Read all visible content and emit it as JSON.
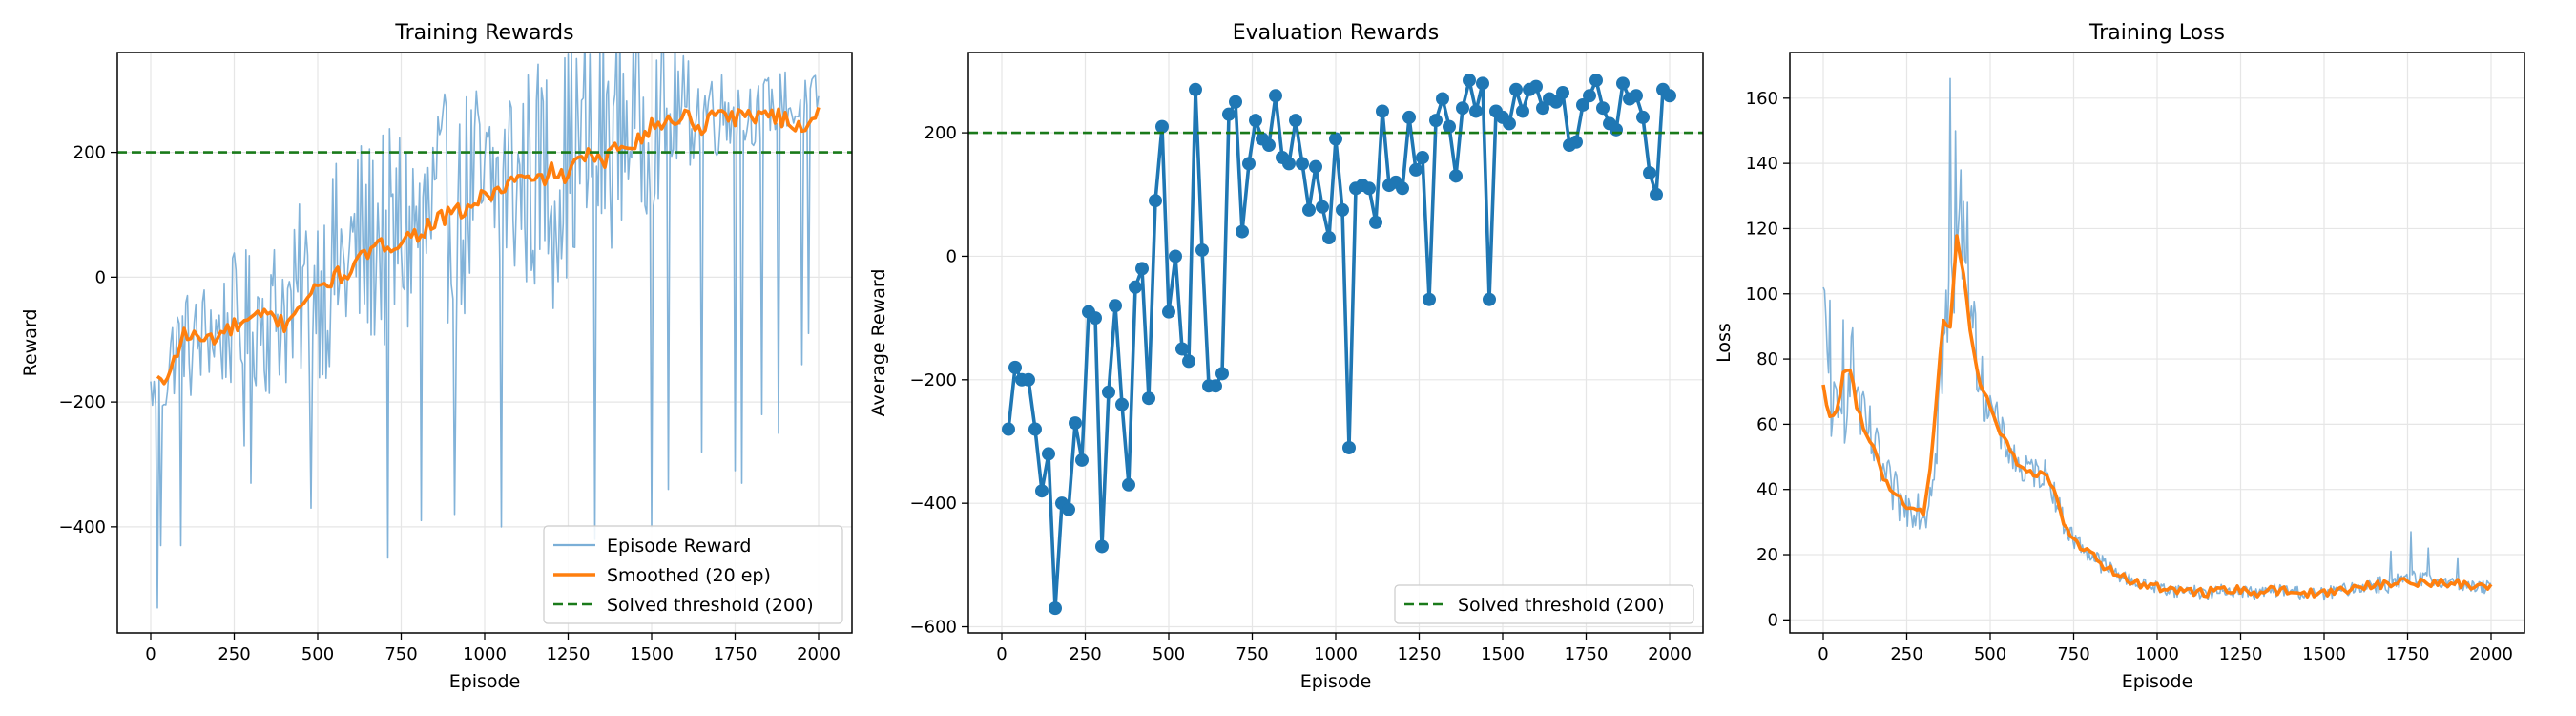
{
  "chart_data": [
    {
      "type": "line",
      "title": "Training Rewards",
      "xlabel": "Episode",
      "ylabel": "Reward",
      "xlim": [
        -100,
        2100
      ],
      "ylim": [
        -570,
        360
      ],
      "xticks": [
        0,
        250,
        500,
        750,
        1000,
        1250,
        1500,
        1750,
        2000
      ],
      "yticks": [
        -400,
        -200,
        0,
        200
      ],
      "grid": true,
      "legend_position": "lower-right",
      "threshold": {
        "value": 200,
        "label": "Solved threshold (200)",
        "color": "#1a7a1a"
      },
      "series": [
        {
          "name": "Episode Reward",
          "color": "#7bafd7",
          "episodes": [
            0,
            25,
            50,
            75,
            100,
            125,
            150,
            175,
            200,
            225,
            250,
            275,
            300,
            325,
            350,
            375,
            400,
            425,
            450,
            475,
            500,
            525,
            550,
            575,
            600,
            625,
            650,
            675,
            700,
            725,
            750,
            775,
            800,
            825,
            850,
            875,
            900,
            925,
            950,
            975,
            1000,
            1025,
            1050,
            1075,
            1100,
            1125,
            1150,
            1175,
            1200,
            1225,
            1250,
            1275,
            1300,
            1325,
            1350,
            1375,
            1400,
            1425,
            1450,
            1475,
            1500,
            1525,
            1550,
            1575,
            1600,
            1625,
            1650,
            1675,
            1700,
            1725,
            1750,
            1775,
            1800,
            1825,
            1850,
            1875,
            1900,
            1925,
            1950,
            1975,
            2000
          ],
          "values": [
            -180,
            -200,
            -150,
            -110,
            -90,
            -120,
            -100,
            -80,
            -95,
            -85,
            -70,
            -60,
            -80,
            -50,
            -75,
            -55,
            -40,
            -70,
            -20,
            -30,
            0,
            -10,
            20,
            10,
            30,
            50,
            40,
            70,
            60,
            40,
            80,
            60,
            90,
            70,
            110,
            100,
            120,
            80,
            130,
            140,
            110,
            150,
            130,
            170,
            140,
            160,
            150,
            190,
            130,
            170,
            190,
            200,
            220,
            180,
            210,
            230,
            240,
            250,
            270,
            230,
            250,
            260,
            240,
            280,
            250,
            270,
            260,
            280,
            260,
            270,
            280,
            250,
            270,
            260,
            280,
            270,
            290,
            260,
            270,
            280,
            290
          ],
          "spread": [
            30,
            60,
            70,
            80,
            80,
            90,
            90,
            90,
            100,
            100,
            110,
            110,
            120,
            120,
            120,
            130,
            140,
            140,
            150,
            150,
            160,
            160,
            170,
            170,
            170,
            180,
            180,
            180,
            190,
            190,
            190,
            190,
            190,
            190,
            190,
            190,
            190,
            190,
            190,
            190,
            190,
            190,
            190,
            190,
            190,
            190,
            190,
            190,
            190,
            190,
            190,
            190,
            190,
            190,
            190,
            190,
            170,
            160,
            150,
            150,
            140,
            130,
            120,
            110,
            100,
            90,
            80,
            80,
            70,
            70,
            60,
            60,
            60,
            50,
            50,
            50,
            50,
            50,
            50,
            40,
            40
          ],
          "extremes": [
            [
              20,
              -530
            ],
            [
              30,
              -430
            ],
            [
              90,
              -430
            ],
            [
              280,
              -270
            ],
            [
              300,
              -330
            ],
            [
              480,
              -370
            ],
            [
              710,
              -450
            ],
            [
              810,
              -390
            ],
            [
              910,
              -380
            ],
            [
              1050,
              -400
            ],
            [
              1330,
              -420
            ],
            [
              1500,
              -400
            ],
            [
              1550,
              -340
            ],
            [
              1650,
              -280
            ],
            [
              1750,
              -310
            ],
            [
              1770,
              -330
            ],
            [
              1830,
              -220
            ],
            [
              1880,
              -250
            ],
            [
              1950,
              -140
            ],
            [
              1970,
              -90
            ]
          ]
        },
        {
          "name": "Smoothed (20 ep)",
          "color": "#ff7f0e",
          "episodes": [
            20,
            40,
            60,
            80,
            100,
            150,
            200,
            250,
            300,
            350,
            400,
            450,
            500,
            550,
            600,
            650,
            700,
            750,
            800,
            850,
            900,
            950,
            1000,
            1050,
            1100,
            1150,
            1200,
            1250,
            1300,
            1350,
            1400,
            1450,
            1500,
            1550,
            1600,
            1650,
            1700,
            1750,
            1800,
            1850,
            1900,
            1950,
            2000
          ],
          "values": [
            -160,
            -180,
            -140,
            -120,
            -90,
            -100,
            -95,
            -80,
            -70,
            -60,
            -75,
            -40,
            -20,
            0,
            10,
            40,
            50,
            60,
            70,
            90,
            100,
            110,
            130,
            140,
            160,
            150,
            170,
            160,
            200,
            180,
            210,
            220,
            240,
            250,
            260,
            240,
            270,
            255,
            260,
            265,
            250,
            240,
            270
          ]
        }
      ]
    },
    {
      "type": "line",
      "title": "Evaluation Rewards",
      "xlabel": "Episode",
      "ylabel": "Average Reward",
      "xlim": [
        -100,
        2100
      ],
      "ylim": [
        -610,
        330
      ],
      "xticks": [
        0,
        250,
        500,
        750,
        1000,
        1250,
        1500,
        1750,
        2000
      ],
      "yticks": [
        -600,
        -400,
        -200,
        0,
        200
      ],
      "grid": true,
      "legend_position": "lower-right",
      "threshold": {
        "value": 200,
        "label": "Solved threshold (200)",
        "color": "#1a7a1a"
      },
      "series": [
        {
          "name": "",
          "color": "#1f77b4",
          "x": [
            20,
            40,
            60,
            80,
            100,
            120,
            140,
            160,
            180,
            200,
            220,
            240,
            260,
            280,
            300,
            320,
            340,
            360,
            380,
            400,
            420,
            440,
            460,
            480,
            500,
            520,
            540,
            560,
            580,
            600,
            620,
            640,
            660,
            680,
            700,
            720,
            740,
            760,
            780,
            800,
            820,
            840,
            860,
            880,
            900,
            920,
            940,
            960,
            980,
            1000,
            1020,
            1040,
            1060,
            1080,
            1100,
            1120,
            1140,
            1160,
            1180,
            1200,
            1220,
            1240,
            1260,
            1280,
            1300,
            1320,
            1340,
            1360,
            1380,
            1400,
            1420,
            1440,
            1460,
            1480,
            1500,
            1520,
            1540,
            1560,
            1580,
            1600,
            1620,
            1640,
            1660,
            1680,
            1700,
            1720,
            1740,
            1760,
            1780,
            1800,
            1820,
            1840,
            1860,
            1880,
            1900,
            1920,
            1940,
            1960,
            1980,
            2000
          ],
          "values": [
            -280,
            -180,
            -200,
            -200,
            -280,
            -380,
            -320,
            -570,
            -400,
            -410,
            -270,
            -330,
            -90,
            -100,
            -470,
            -220,
            -80,
            -240,
            -370,
            -50,
            -20,
            -230,
            90,
            210,
            -90,
            0,
            -150,
            -170,
            270,
            10,
            -210,
            -210,
            -190,
            230,
            250,
            40,
            150,
            220,
            190,
            180,
            260,
            160,
            150,
            220,
            150,
            75,
            145,
            80,
            30,
            190,
            75,
            -310,
            110,
            115,
            110,
            55,
            235,
            115,
            120,
            110,
            225,
            140,
            160,
            -70,
            220,
            255,
            210,
            130,
            240,
            285,
            235,
            280,
            -70,
            235,
            225,
            215,
            270,
            235,
            270,
            275,
            240,
            255,
            250,
            265,
            180,
            185,
            245,
            260,
            285,
            240,
            215,
            205,
            280,
            255,
            260,
            225,
            135,
            100,
            270,
            260
          ]
        }
      ]
    },
    {
      "type": "line",
      "title": "Training Loss",
      "xlabel": "Episode",
      "ylabel": "Loss",
      "xlim": [
        -100,
        2100
      ],
      "ylim": [
        -4,
        174
      ],
      "xticks": [
        0,
        250,
        500,
        750,
        1000,
        1250,
        1500,
        1750,
        2000
      ],
      "yticks": [
        0,
        20,
        40,
        60,
        80,
        100,
        120,
        140,
        160
      ],
      "grid": true,
      "series": [
        {
          "name": "",
          "color": "#7bafd7",
          "episodes": [
            0,
            20,
            40,
            60,
            80,
            100,
            120,
            140,
            160,
            180,
            200,
            220,
            240,
            260,
            280,
            300,
            320,
            340,
            360,
            380,
            400,
            420,
            440,
            460,
            480,
            500,
            520,
            540,
            560,
            580,
            600,
            620,
            640,
            660,
            680,
            700,
            720,
            740,
            760,
            780,
            800,
            850,
            900,
            950,
            1000,
            1050,
            1100,
            1150,
            1200,
            1250,
            1300,
            1350,
            1400,
            1450,
            1500,
            1550,
            1600,
            1650,
            1700,
            1750,
            1800,
            1850,
            1900,
            1950,
            2000
          ],
          "values": [
            95,
            70,
            58,
            62,
            82,
            70,
            60,
            56,
            50,
            45,
            40,
            38,
            34,
            35,
            36,
            32,
            40,
            60,
            85,
            95,
            110,
            120,
            100,
            80,
            70,
            65,
            60,
            55,
            52,
            48,
            45,
            46,
            45,
            45,
            43,
            36,
            30,
            26,
            24,
            22,
            20,
            16,
            13,
            11,
            10,
            9,
            9,
            8,
            9,
            9,
            8,
            9,
            9,
            8,
            8,
            9,
            10,
            11,
            11,
            12,
            12,
            12,
            11,
            10,
            10
          ],
          "spread": [
            12,
            14,
            14,
            14,
            14,
            12,
            10,
            10,
            9,
            8,
            8,
            7,
            7,
            7,
            7,
            7,
            10,
            14,
            16,
            20,
            20,
            16,
            12,
            10,
            9,
            8,
            7,
            6,
            6,
            6,
            5,
            5,
            5,
            5,
            5,
            4,
            4,
            4,
            3,
            3,
            3,
            3,
            2,
            2,
            2,
            2,
            2,
            2,
            2,
            2,
            2,
            2,
            2,
            2,
            2,
            2,
            2,
            3,
            3,
            3,
            3,
            2,
            2,
            2,
            2
          ],
          "extremes": [
            [
              5,
              101
            ],
            [
              18,
              98
            ],
            [
              60,
              92
            ],
            [
              380,
              166
            ],
            [
              395,
              150
            ],
            [
              410,
              138
            ],
            [
              430,
              128
            ],
            [
              1700,
              21
            ],
            [
              1760,
              27
            ],
            [
              1810,
              22
            ],
            [
              1900,
              19
            ]
          ]
        },
        {
          "name": "",
          "color": "#ff7f0e",
          "episodes": [
            0,
            20,
            40,
            60,
            80,
            100,
            120,
            140,
            160,
            180,
            200,
            220,
            240,
            260,
            280,
            300,
            320,
            340,
            360,
            380,
            400,
            420,
            440,
            460,
            480,
            500,
            520,
            540,
            560,
            580,
            600,
            620,
            640,
            660,
            680,
            700,
            720,
            740,
            760,
            780,
            800,
            850,
            900,
            950,
            1000,
            1050,
            1100,
            1150,
            1200,
            1250,
            1300,
            1350,
            1400,
            1450,
            1500,
            1550,
            1600,
            1650,
            1700,
            1750,
            1800,
            1850,
            1900,
            1950,
            2000
          ],
          "values": [
            72,
            62,
            64,
            76,
            78,
            66,
            60,
            55,
            50,
            44,
            40,
            38,
            36,
            35,
            33,
            33,
            45,
            70,
            92,
            90,
            118,
            105,
            90,
            76,
            70,
            65,
            60,
            56,
            52,
            48,
            46,
            45,
            45,
            44,
            42,
            37,
            30,
            26,
            24,
            22,
            20,
            16,
            13,
            11,
            10,
            9,
            9,
            8.5,
            9,
            9,
            8.5,
            9,
            8.5,
            8,
            8.5,
            9,
            10,
            10.5,
            11,
            11.5,
            11,
            11.5,
            11,
            10.5,
            10.5
          ]
        }
      ]
    }
  ]
}
